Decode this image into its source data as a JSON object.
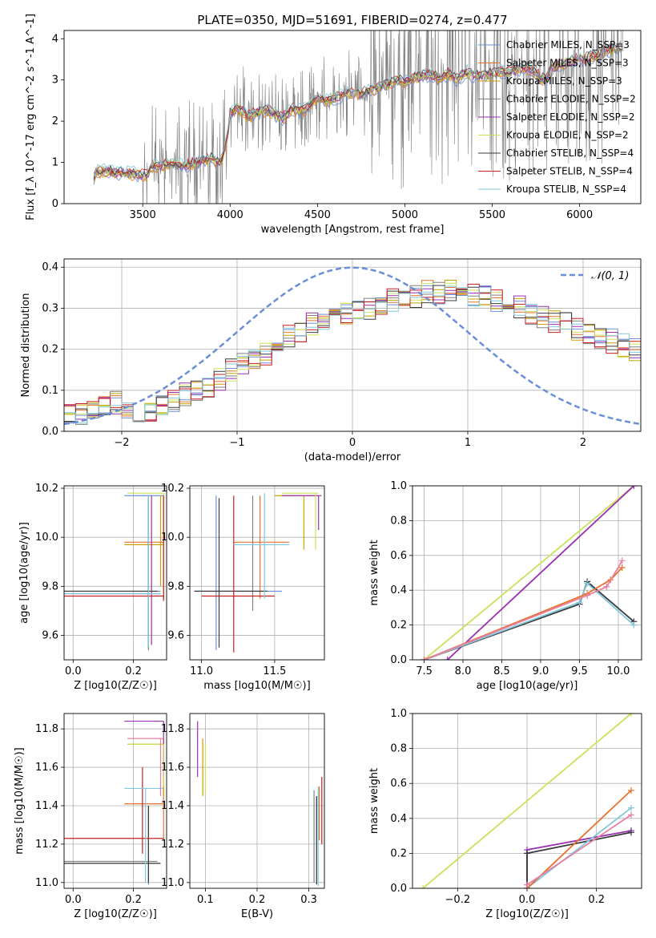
{
  "colors": [
    "#6a8fd6",
    "#e8702a",
    "#c8a000",
    "#808080",
    "#9a2fb3",
    "#c9e25a",
    "#3a3a3a",
    "#c91f1f",
    "#82c8dc",
    "#e87fa0",
    "#4f8f8f",
    "#7a5a9a"
  ],
  "chart_data": [
    {
      "id": "spectrum",
      "type": "line",
      "title": "PLATE=0350, MJD=51691, FIBERID=0274, z=0.477",
      "xlabel": "wavelength [Angstrom, rest frame]",
      "ylabel": "Flux [f_λ 10^-17 erg cm^-2 s^-1 A^-1]",
      "xlim": [
        3050,
        6350
      ],
      "ylim": [
        0,
        4.2
      ],
      "xticks": [
        3500,
        4000,
        4500,
        5000,
        5500,
        6000
      ],
      "yticks": [
        0,
        1,
        2,
        3,
        4
      ],
      "legend_position": "top-right",
      "series": [
        {
          "name": "Chabrier MILES, N_SSP=3"
        },
        {
          "name": "Salpeter MILES, N_SSP=3"
        },
        {
          "name": "Kroupa MILES, N_SSP=3"
        },
        {
          "name": "Chabrier ELODIE, N_SSP=2"
        },
        {
          "name": "Salpeter ELODIE, N_SSP=2"
        },
        {
          "name": "Kroupa ELODIE, N_SSP=2"
        },
        {
          "name": "Chabrier STELIB, N_SSP=4"
        },
        {
          "name": "Salpeter STELIB, N_SSP=4"
        },
        {
          "name": "Kroupa STELIB, N_SSP=4"
        }
      ],
      "model_continuum": {
        "x": [
          3220,
          3230,
          3240,
          3260,
          3300,
          3350,
          3400,
          3450,
          3500,
          3520,
          3550,
          3600,
          3650,
          3700,
          3750,
          3800,
          3850,
          3900,
          3930,
          3950,
          3980,
          4000,
          4050,
          4100,
          4150,
          4200,
          4250,
          4300,
          4350,
          4400,
          4450,
          4500,
          4550,
          4600,
          4650,
          4700,
          4750,
          4800,
          4850,
          4900,
          4950,
          5000,
          5050,
          5100,
          5150,
          5200,
          5250,
          5300,
          5350,
          5400,
          5450,
          5500,
          5550,
          5600,
          5650,
          5700,
          5750,
          5800,
          5850,
          5900,
          5950,
          6000,
          6050,
          6100,
          6150,
          6200,
          6250
        ],
        "y": [
          0.6,
          0.78,
          0.8,
          0.78,
          0.8,
          0.75,
          0.74,
          0.72,
          0.7,
          0.68,
          0.88,
          0.92,
          0.98,
          0.95,
          0.9,
          1.0,
          1.05,
          1.1,
          1.0,
          1.05,
          1.5,
          2.2,
          2.3,
          2.1,
          2.2,
          2.25,
          2.2,
          2.05,
          2.3,
          2.25,
          2.35,
          2.6,
          2.5,
          2.55,
          2.65,
          2.7,
          2.65,
          2.75,
          2.8,
          2.9,
          3.0,
          2.95,
          3.05,
          3.1,
          3.1,
          3.05,
          3.15,
          3.0,
          3.2,
          3.1,
          3.1,
          3.15,
          3.2,
          3.2,
          3.25,
          3.3,
          3.15,
          3.0,
          3.3,
          3.4,
          3.45,
          3.5,
          3.55,
          3.6,
          3.7,
          3.75,
          3.8
        ]
      }
    },
    {
      "id": "residuals",
      "type": "step",
      "xlabel": "(data-model)/error",
      "ylabel": "Normed distribution",
      "xlim": [
        -2.5,
        2.5
      ],
      "ylim": [
        0,
        0.42
      ],
      "xticks": [
        -2,
        -1,
        0,
        1,
        2
      ],
      "yticks": [
        0.0,
        0.1,
        0.2,
        0.3,
        0.4
      ],
      "grid": true,
      "legend": "𝒩(0, 1)",
      "legend_position": "top-right",
      "bin_edges_start": -2.5,
      "bin_width": 0.1,
      "hist_values": [
        0.04,
        0.04,
        0.05,
        0.06,
        0.07,
        0.06,
        0.05,
        0.05,
        0.06,
        0.07,
        0.09,
        0.1,
        0.11,
        0.13,
        0.15,
        0.16,
        0.18,
        0.19,
        0.21,
        0.23,
        0.24,
        0.26,
        0.27,
        0.28,
        0.29,
        0.3,
        0.3,
        0.31,
        0.32,
        0.33,
        0.33,
        0.34,
        0.34,
        0.34,
        0.33,
        0.33,
        0.33,
        0.32,
        0.31,
        0.3,
        0.29,
        0.28,
        0.27,
        0.26,
        0.25,
        0.24,
        0.23,
        0.22,
        0.21,
        0.2
      ],
      "gaussian": {
        "mean": 0,
        "sigma": 1
      }
    },
    {
      "id": "age-vs-Z",
      "type": "scatter",
      "xlabel": "Z [log10(Z/Z☉)]",
      "ylabel": "age [log10(age/yr)]",
      "xlim": [
        -0.03,
        0.31
      ],
      "ylim": [
        9.5,
        10.21
      ],
      "xticks": [
        0.0,
        0.2
      ],
      "yticks": [
        9.6,
        9.8,
        10.0,
        10.2
      ],
      "grid": true
    },
    {
      "id": "age-vs-mass",
      "type": "scatter",
      "xlabel": "mass [log10(M/M☉)]",
      "ylabel": "",
      "xlim": [
        10.92,
        11.84
      ],
      "ylim": [
        9.5,
        10.21
      ],
      "xticks": [
        11.0,
        11.5
      ],
      "yticks": [
        9.6,
        9.8,
        10.0,
        10.2
      ],
      "grid": true
    },
    {
      "id": "massweight-vs-age",
      "type": "line",
      "xlabel": "age [log10(age/yr)]",
      "ylabel": "mass weight",
      "xlim": [
        7.35,
        10.3
      ],
      "ylim": [
        0,
        1.0
      ],
      "xticks": [
        7.5,
        8.0,
        8.5,
        9.0,
        9.5,
        10.0
      ],
      "yticks": [
        0.0,
        0.2,
        0.4,
        0.6,
        0.8,
        1.0
      ],
      "grid": true,
      "series": [
        {
          "x": [
            7.5,
            10.2
          ],
          "y": [
            0.0,
            1.0
          ]
        },
        {
          "x": [
            7.8,
            10.2
          ],
          "y": [
            0.0,
            1.0
          ]
        },
        {
          "x": [
            7.5,
            9.5,
            9.6,
            10.2
          ],
          "y": [
            0.0,
            0.32,
            0.45,
            0.22
          ]
        },
        {
          "x": [
            7.5,
            9.5,
            9.6,
            10.2
          ],
          "y": [
            0.0,
            0.33,
            0.44,
            0.2
          ]
        },
        {
          "x": [
            7.5,
            9.6,
            9.9,
            10.05
          ],
          "y": [
            0.0,
            0.38,
            0.46,
            0.53
          ]
        },
        {
          "x": [
            7.5,
            9.6,
            9.85,
            10.05
          ],
          "y": [
            0.0,
            0.37,
            0.42,
            0.57
          ]
        }
      ]
    },
    {
      "id": "mass-vs-Z",
      "type": "scatter",
      "xlabel": "Z [log10(Z/Z☉)]",
      "ylabel": "mass [log10(M/M☉)]",
      "xlim": [
        -0.03,
        0.31
      ],
      "ylim": [
        10.97,
        11.88
      ],
      "xticks": [
        0.0,
        0.2
      ],
      "yticks": [
        11.0,
        11.2,
        11.4,
        11.6,
        11.8
      ],
      "grid": true
    },
    {
      "id": "mass-vs-EBV",
      "type": "scatter",
      "xlabel": "E(B-V)",
      "ylabel": "",
      "xlim": [
        0.07,
        0.33
      ],
      "ylim": [
        10.97,
        11.88
      ],
      "xticks": [
        0.1,
        0.2,
        0.3
      ],
      "yticks": [
        11.0,
        11.2,
        11.4,
        11.6,
        11.8
      ],
      "grid": true
    },
    {
      "id": "massweight-vs-Z",
      "type": "line",
      "xlabel": "Z [log10(Z/Z☉)]",
      "ylabel": "mass weight",
      "xlim": [
        -0.33,
        0.33
      ],
      "ylim": [
        0,
        1.0
      ],
      "xticks": [
        -0.2,
        0.0,
        0.2
      ],
      "yticks": [
        0.0,
        0.2,
        0.4,
        0.6,
        0.8,
        1.0
      ],
      "grid": true,
      "series": [
        {
          "x": [
            -0.3,
            0.3
          ],
          "y": [
            0.0,
            1.0
          ]
        },
        {
          "x": [
            0.0,
            0.0,
            0.3
          ],
          "y": [
            0.0,
            0.22,
            0.33
          ]
        },
        {
          "x": [
            0.0,
            0.0,
            0.3
          ],
          "y": [
            0.0,
            0.2,
            0.32
          ]
        },
        {
          "x": [
            0.0,
            0.0,
            0.3
          ],
          "y": [
            0.0,
            0.0,
            0.46
          ]
        },
        {
          "x": [
            0.0,
            0.0,
            0.3
          ],
          "y": [
            0.0,
            0.0,
            0.56
          ]
        },
        {
          "x": [
            0.0,
            0.0,
            0.3
          ],
          "y": [
            0.0,
            0.02,
            0.42
          ]
        }
      ]
    }
  ]
}
